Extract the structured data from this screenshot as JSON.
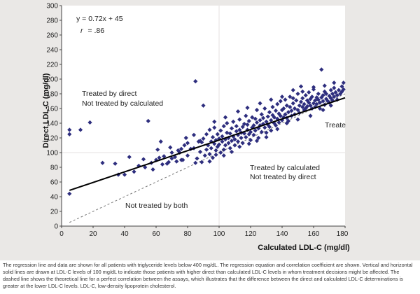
{
  "chart_data": {
    "type": "scatter",
    "xlabel": "Calculated LDL-C (mg/dl)",
    "ylabel": "Direct LDL-C (mg/dl)",
    "xlim": [
      0,
      180
    ],
    "ylim": [
      0,
      300
    ],
    "xticks": [
      0,
      20,
      40,
      60,
      80,
      100,
      120,
      140,
      160,
      180
    ],
    "yticks": [
      0,
      20,
      40,
      60,
      80,
      100,
      120,
      140,
      160,
      180,
      200,
      220,
      240,
      260,
      280,
      300
    ],
    "xtick_labels": [
      "0",
      "20",
      "40",
      "60",
      "80",
      "100",
      "120",
      "140",
      "160",
      "180"
    ],
    "ytick_labels": [
      "0",
      "20",
      "40",
      "60",
      "80",
      "100",
      "120",
      "140",
      "160",
      "180",
      "200",
      "220",
      "240",
      "260",
      "280",
      "300"
    ],
    "regression": {
      "slope": 0.72,
      "intercept": 45
    },
    "identity_line": {
      "slope": 1,
      "intercept": 0,
      "style": "dashed"
    },
    "threshold": 100,
    "grid": false,
    "equation_text": "y = 0.72x + 45",
    "r_label": "r",
    "r_value": "= .86",
    "point_color": "#2e2e7e",
    "annotations": {
      "direct_only": [
        "Treated by direct",
        "Not treated by calculated"
      ],
      "both_treated": "Treate",
      "calculated_only": [
        "Treated by calculated",
        "Not treated by direct"
      ],
      "neither": "Not treated by both"
    },
    "points": [
      [
        5,
        44
      ],
      [
        5,
        125
      ],
      [
        5,
        131
      ],
      [
        12,
        131
      ],
      [
        18,
        141
      ],
      [
        26,
        86
      ],
      [
        34,
        85
      ],
      [
        36,
        70
      ],
      [
        40,
        70
      ],
      [
        55,
        143
      ],
      [
        57,
        86
      ],
      [
        60,
        90
      ],
      [
        62,
        93
      ],
      [
        63,
        115
      ],
      [
        65,
        95
      ],
      [
        67,
        85
      ],
      [
        70,
        100
      ],
      [
        70,
        92
      ],
      [
        72,
        94
      ],
      [
        74,
        103
      ],
      [
        75,
        100
      ],
      [
        76,
        105
      ],
      [
        77,
        90
      ],
      [
        78,
        110
      ],
      [
        80,
        113
      ],
      [
        82,
        105
      ],
      [
        84,
        106
      ],
      [
        85,
        197
      ],
      [
        86,
        92
      ],
      [
        87,
        115
      ],
      [
        88,
        101
      ],
      [
        88,
        116
      ],
      [
        89,
        114
      ],
      [
        90,
        119
      ],
      [
        90,
        164
      ],
      [
        91,
        96
      ],
      [
        92,
        104
      ],
      [
        92,
        125
      ],
      [
        93,
        110
      ],
      [
        94,
        98
      ],
      [
        94,
        131
      ],
      [
        95,
        115
      ],
      [
        95,
        106
      ],
      [
        96,
        121
      ],
      [
        96,
        93
      ],
      [
        97,
        112
      ],
      [
        97,
        134
      ],
      [
        98,
        117
      ],
      [
        98,
        103
      ],
      [
        99,
        108
      ],
      [
        99,
        125
      ],
      [
        100,
        111
      ],
      [
        100,
        119
      ],
      [
        101,
        100
      ],
      [
        101,
        130
      ],
      [
        102,
        115
      ],
      [
        102,
        122
      ],
      [
        103,
        104
      ],
      [
        103,
        136
      ],
      [
        104,
        118
      ],
      [
        104,
        110
      ],
      [
        105,
        127
      ],
      [
        105,
        140
      ],
      [
        106,
        113
      ],
      [
        106,
        120
      ],
      [
        107,
        126
      ],
      [
        107,
        106
      ],
      [
        108,
        133
      ],
      [
        108,
        116
      ],
      [
        109,
        122
      ],
      [
        109,
        142
      ],
      [
        110,
        118
      ],
      [
        110,
        110
      ],
      [
        111,
        129
      ],
      [
        111,
        136
      ],
      [
        112,
        124
      ],
      [
        112,
        115
      ],
      [
        113,
        131
      ],
      [
        113,
        145
      ],
      [
        114,
        120
      ],
      [
        114,
        127
      ],
      [
        115,
        135
      ],
      [
        115,
        113
      ],
      [
        116,
        139
      ],
      [
        116,
        126
      ],
      [
        117,
        121
      ],
      [
        117,
        150
      ],
      [
        118,
        131
      ],
      [
        118,
        138
      ],
      [
        119,
        125
      ],
      [
        119,
        143
      ],
      [
        120,
        128
      ],
      [
        120,
        117
      ],
      [
        121,
        134
      ],
      [
        121,
        148
      ],
      [
        122,
        137
      ],
      [
        122,
        124
      ],
      [
        123,
        146
      ],
      [
        123,
        130
      ],
      [
        124,
        141
      ],
      [
        124,
        158
      ],
      [
        125,
        133
      ],
      [
        125,
        120
      ],
      [
        126,
        144
      ],
      [
        126,
        137
      ],
      [
        127,
        128
      ],
      [
        127,
        152
      ],
      [
        128,
        139
      ],
      [
        128,
        147
      ],
      [
        129,
        134
      ],
      [
        129,
        160
      ],
      [
        130,
        142
      ],
      [
        130,
        127
      ],
      [
        131,
        149
      ],
      [
        131,
        138
      ],
      [
        132,
        135
      ],
      [
        132,
        155
      ],
      [
        133,
        144
      ],
      [
        133,
        130
      ],
      [
        134,
        151
      ],
      [
        134,
        162
      ],
      [
        135,
        140
      ],
      [
        135,
        148
      ],
      [
        136,
        137
      ],
      [
        136,
        157
      ],
      [
        137,
        146
      ],
      [
        137,
        166
      ],
      [
        138,
        153
      ],
      [
        138,
        141
      ],
      [
        139,
        150
      ],
      [
        139,
        170
      ],
      [
        140,
        144
      ],
      [
        140,
        158
      ],
      [
        141,
        160
      ],
      [
        141,
        148
      ],
      [
        142,
        152
      ],
      [
        142,
        172
      ],
      [
        143,
        147
      ],
      [
        143,
        164
      ],
      [
        144,
        155
      ],
      [
        144,
        143
      ],
      [
        145,
        162
      ],
      [
        145,
        176
      ],
      [
        146,
        157
      ],
      [
        146,
        150
      ],
      [
        147,
        167
      ],
      [
        147,
        185
      ],
      [
        148,
        160
      ],
      [
        148,
        152
      ],
      [
        149,
        171
      ],
      [
        150,
        158
      ],
      [
        150,
        180
      ],
      [
        151,
        164
      ],
      [
        151,
        154
      ],
      [
        152,
        169
      ],
      [
        152,
        190
      ],
      [
        153,
        162
      ],
      [
        153,
        174
      ],
      [
        154,
        158
      ],
      [
        154,
        166
      ],
      [
        155,
        178
      ],
      [
        155,
        160
      ],
      [
        156,
        171
      ],
      [
        156,
        163
      ],
      [
        157,
        168
      ],
      [
        157,
        182
      ],
      [
        158,
        164
      ],
      [
        158,
        173
      ],
      [
        159,
        160
      ],
      [
        159,
        176
      ],
      [
        160,
        167
      ],
      [
        160,
        186
      ],
      [
        161,
        171
      ],
      [
        161,
        162
      ],
      [
        162,
        175
      ],
      [
        162,
        166
      ],
      [
        163,
        172
      ],
      [
        163,
        180
      ],
      [
        164,
        168
      ],
      [
        164,
        160
      ],
      [
        165,
        213
      ],
      [
        165,
        175
      ],
      [
        166,
        170
      ],
      [
        166,
        178
      ],
      [
        167,
        165
      ],
      [
        167,
        183
      ],
      [
        168,
        173
      ],
      [
        168,
        180
      ],
      [
        169,
        170
      ],
      [
        170,
        177
      ],
      [
        170,
        168
      ],
      [
        171,
        185
      ],
      [
        171,
        174
      ],
      [
        172,
        180
      ],
      [
        172,
        171
      ],
      [
        173,
        176
      ],
      [
        173,
        188
      ],
      [
        174,
        182
      ],
      [
        175,
        178
      ],
      [
        175,
        172
      ],
      [
        176,
        185
      ],
      [
        177,
        180
      ],
      [
        178,
        190
      ],
      [
        178,
        183
      ],
      [
        179,
        186
      ],
      [
        179,
        195
      ],
      [
        171,
        164
      ],
      [
        166,
        158
      ],
      [
        158,
        150
      ],
      [
        150,
        145
      ],
      [
        143,
        140
      ],
      [
        137,
        132
      ],
      [
        130,
        121
      ],
      [
        124,
        116
      ],
      [
        119,
        112
      ],
      [
        113,
        108
      ],
      [
        108,
        101
      ],
      [
        103,
        96
      ],
      [
        98,
        97
      ],
      [
        94,
        88
      ],
      [
        89,
        87
      ],
      [
        85,
        86
      ],
      [
        80,
        96
      ],
      [
        76,
        90
      ],
      [
        73,
        88
      ],
      [
        68,
        87
      ],
      [
        64,
        84
      ],
      [
        58,
        77
      ],
      [
        53,
        80
      ],
      [
        49,
        82
      ],
      [
        46,
        74
      ],
      [
        43,
        94
      ],
      [
        52,
        91
      ],
      [
        61,
        104
      ],
      [
        69,
        107
      ],
      [
        79,
        120
      ],
      [
        84,
        124
      ],
      [
        97,
        142
      ],
      [
        104,
        148
      ],
      [
        112,
        156
      ],
      [
        118,
        161
      ],
      [
        126,
        167
      ],
      [
        133,
        172
      ],
      [
        140,
        176
      ],
      [
        147,
        174
      ],
      [
        153,
        183
      ],
      [
        160,
        189
      ],
      [
        167,
        191
      ],
      [
        173,
        195
      ]
    ]
  },
  "caption": "The regression line and data are shown for all patients with triglyceride levels below 400 mg/dL. The regression equation and correlation coefficient are shown. Vertical and horizontal solid lines are drawn at LDL-C levels of 100 mg/dL to indicate those patients with higher direct than calculated LDL-C levels in whom treatment decisions might be affected. The dashed line shows the theoretical line for a perfect correlation between the assays, which illustrates that the difference between the direct and calculated LDL-C determinations is greater at the lower LDL-C levels. LDL-C, low-density lipoprotein cholesterol."
}
